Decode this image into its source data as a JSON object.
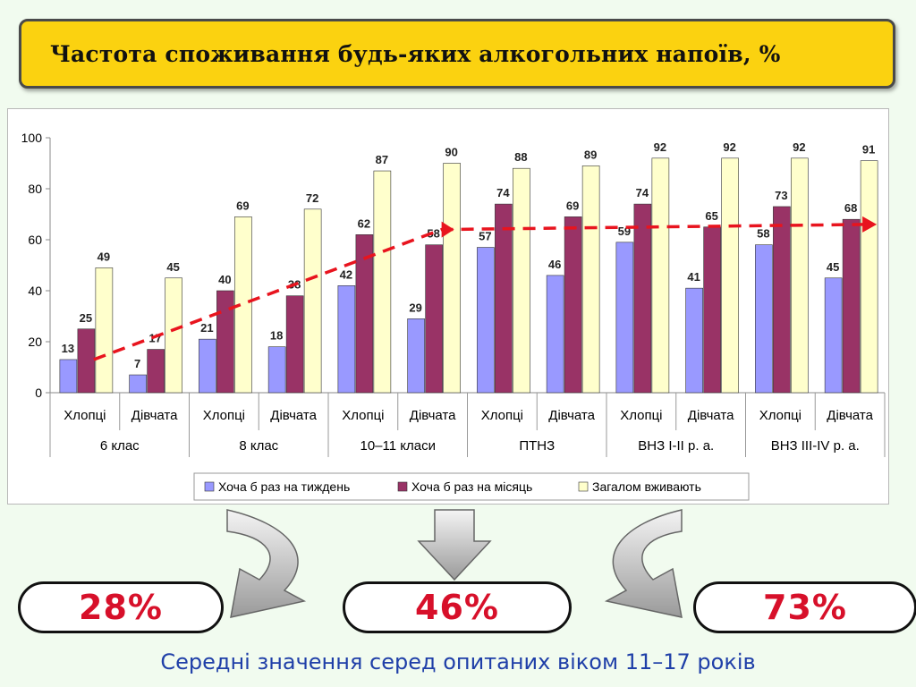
{
  "title": "Частота споживання будь-яких алкогольних напоїв, %",
  "chart_data": {
    "type": "bar",
    "groups": [
      "6 клас",
      "8 клас",
      "10–11 класи",
      "ПТНЗ",
      "ВНЗ І-ІІ р. а.",
      "ВНЗ ІІІ-ІV р. а."
    ],
    "categories": [
      "Хлопці",
      "Дівчата",
      "Хлопці",
      "Дівчата",
      "Хлопці",
      "Дівчата",
      "Хлопці",
      "Дівчата",
      "Хлопці",
      "Дівчата",
      "Хлопці",
      "Дівчата"
    ],
    "series": [
      {
        "name": "Хоча б раз на тиждень",
        "color": "#9999ff",
        "values": [
          13,
          7,
          21,
          18,
          42,
          29,
          57,
          46,
          59,
          41,
          58,
          45
        ]
      },
      {
        "name": "Хоча б раз на місяць",
        "color": "#993366",
        "values": [
          25,
          17,
          40,
          38,
          62,
          58,
          74,
          69,
          74,
          65,
          73,
          68
        ]
      },
      {
        "name": "Загалом вживають",
        "color": "#ffffcc",
        "values": [
          49,
          45,
          69,
          72,
          87,
          90,
          88,
          89,
          92,
          92,
          92,
          91
        ]
      }
    ],
    "ylim": [
      0,
      100
    ],
    "yticks": [
      0,
      20,
      40,
      60,
      80,
      100
    ],
    "legend_position": "bottom",
    "trend_line_color": "#e8141e"
  },
  "summary": {
    "values": [
      "28%",
      "46%",
      "73%"
    ],
    "caption": "Середні значення серед опитаних віком 11–17 років"
  }
}
